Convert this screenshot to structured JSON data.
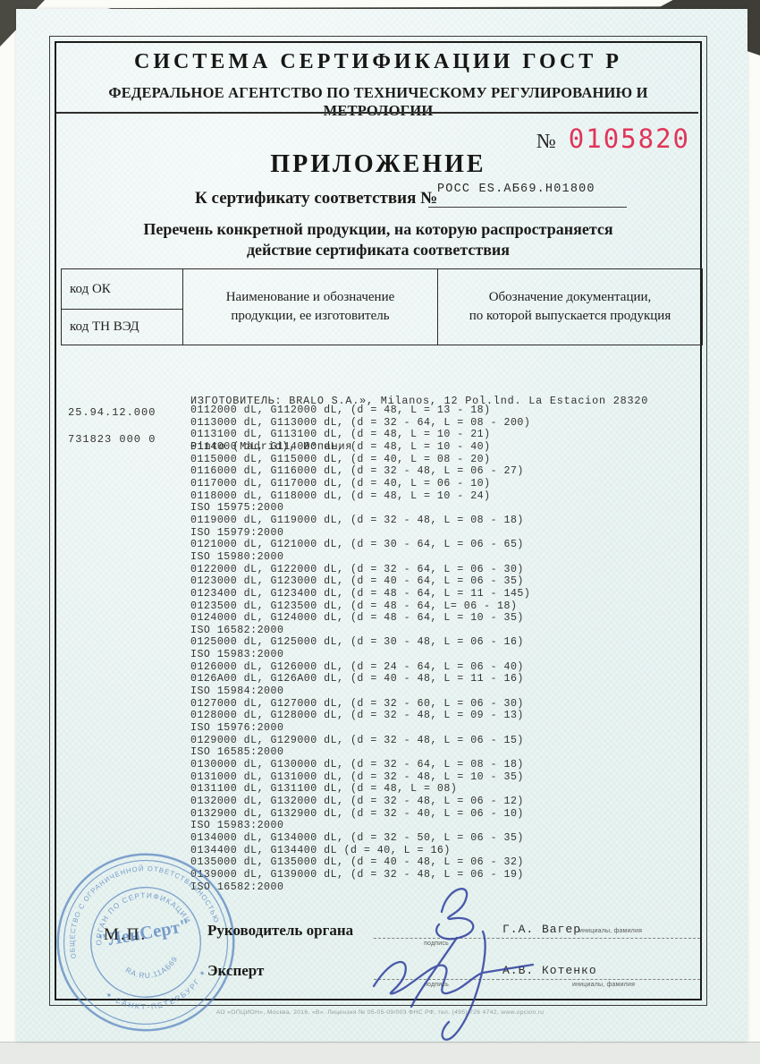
{
  "header": {
    "system_title": "СИСТЕМА СЕРТИФИКАЦИИ ГОСТ Р",
    "agency": "ФЕДЕРАЛЬНОЕ АГЕНТСТВО ПО ТЕХНИЧЕСКОМУ РЕГУЛИРОВАНИЮ И МЕТРОЛОГИИ"
  },
  "blank_number": {
    "label": "№",
    "value": "0105820",
    "color": "#e0355a"
  },
  "title": "ПРИЛОЖЕНИЕ",
  "certificate_ref": {
    "label": "К сертификату соответствия №",
    "value": "РОСС ES.АБ69.Н01800"
  },
  "subtitle_line1": "Перечень конкретной продукции, на которую распространяется",
  "subtitle_line2": "действие сертификата соответствия",
  "table": {
    "col1_row1": "код ОК",
    "col1_row2": "код ТН ВЭД",
    "col2_line1": "Наименование и обозначение",
    "col2_line2": "продукции, ее изготовитель",
    "col3_line1": "Обозначение документации,",
    "col3_line2": "по которой выпускается продукция"
  },
  "codes": {
    "ok_code": "25.94.12.000",
    "tnved_code": "731823 000 0"
  },
  "manufacturer": {
    "line1": "ИЗГОТОВИТЕЛЬ: BRALO S.A.», Milanos, 12 Pol.lnd. La Estacion 28320",
    "line2": "Pinto (Madrid), Испания"
  },
  "products": {
    "lines": [
      "0112000 dL, G112000 dL, (d = 48, L = 13 - 18)",
      "0113000 dL, G113000 dL, (d = 32 - 64, L = 08 - 200)",
      "0113100 dL, G113100 dL, (d = 48, L = 10 - 21)",
      "0114000 dL, G114000 dL, (d = 48, L = 10 - 40)",
      "0115000 dL, G115000 dL, (d = 40, L = 08 - 20)",
      "0116000 dL, G116000 dL, (d = 32 - 48, L = 06 - 27)",
      "0117000 dL, G117000 dL, (d = 40, L = 06 - 10)",
      "0118000 dL, G118000 dL, (d = 48, L = 10 - 24)",
      "ISO 15975:2000",
      "0119000 dL, G119000 dL, (d = 32 - 48, L = 08 - 18)",
      "ISO 15979:2000",
      "0121000 dL, G121000 dL, (d = 30 - 64, L = 06 - 65)",
      "ISO 15980:2000",
      "0122000 dL, G122000 dL, (d = 32 - 64, L = 06 - 30)",
      "0123000 dL, G123000 dL, (d = 40 - 64, L = 06 - 35)",
      "0123400 dL, G123400 dL, (d = 48 - 64, L = 11 - 145)",
      "0123500 dL, G123500 dL, (d = 48 - 64, L= 06 - 18)",
      "0124000 dL, G124000 dL, (d = 48 - 64, L = 10 - 35)",
      "ISO 16582:2000",
      "0125000 dL, G125000 dL, (d = 30 - 48, L = 06 - 16)",
      "ISO 15983:2000",
      "0126000 dL, G126000 dL, (d = 24 - 64, L = 06 - 40)",
      "0126A00 dL, G126A00 dL, (d = 40 - 48, L = 11 - 16)",
      "ISO 15984:2000",
      "0127000 dL, G127000 dL, (d = 32 - 60, L = 06 - 30)",
      "0128000 dL, G128000 dL, (d = 32 - 48, L = 09 - 13)",
      "ISO 15976:2000",
      "0129000 dL, G129000 dL, (d = 32 - 48, L = 06 - 15)",
      "ISO 16585:2000",
      "0130000 dL, G130000 dL, (d = 32 - 64, L = 08 - 18)",
      "0131000 dL, G131000 dL, (d = 32 - 48, L = 10 - 35)",
      "0131100 dL, G131100 dL, (d = 48, L = 08)",
      "0132000 dL, G132000 dL, (d = 32 - 48, L = 06 - 12)",
      "0132900 dL, G132900 dL, (d = 32 - 40, L = 06 - 10)",
      "ISO 15983:2000",
      "0134000 dL, G134000 dL, (d = 32 - 50, L = 06 - 35)",
      "0134400 dL, G134400 dL (d = 40, L = 16)",
      "0135000 dL, G135000 dL, (d = 40 - 48, L = 06 - 32)",
      "0139000 dL, G139000 dL, (d = 32 - 48, L = 06 - 19)",
      "ISO 16582:2000"
    ]
  },
  "stamp": {
    "outer_text_top": "ОБЩЕСТВО С ОГРАНИЧЕННОЙ ОТВЕТСТВЕННОСТЬЮ",
    "outer_text_bottom": "✦ САНКТ-ПЕТЕРБУРГ ✦",
    "inner_text_top": "ОРГАН ПО СЕРТИФИКАЦИИ",
    "name": "\"ЛенСерт\"",
    "reg_number": "RA.RU.11АБ69",
    "color": "#4f7dbd"
  },
  "seal_mark": "М.П.",
  "signatures": {
    "row1": {
      "role": "Руководитель органа",
      "sign_label": "подпись",
      "name": "Г.А. Вагер",
      "name_label": "инициалы, фамилия"
    },
    "row2": {
      "role": "Эксперт",
      "sign_label": "подпись",
      "name": "А.В. Котенко",
      "name_label": "инициалы, фамилия"
    }
  },
  "footer": {
    "imprint": "АО «ОПЦИОН», Москва, 2016, «В». Лицензия № 05-05-09/003 ФНС РФ, тел. (495) 726 4742, www.opcion.ru"
  }
}
